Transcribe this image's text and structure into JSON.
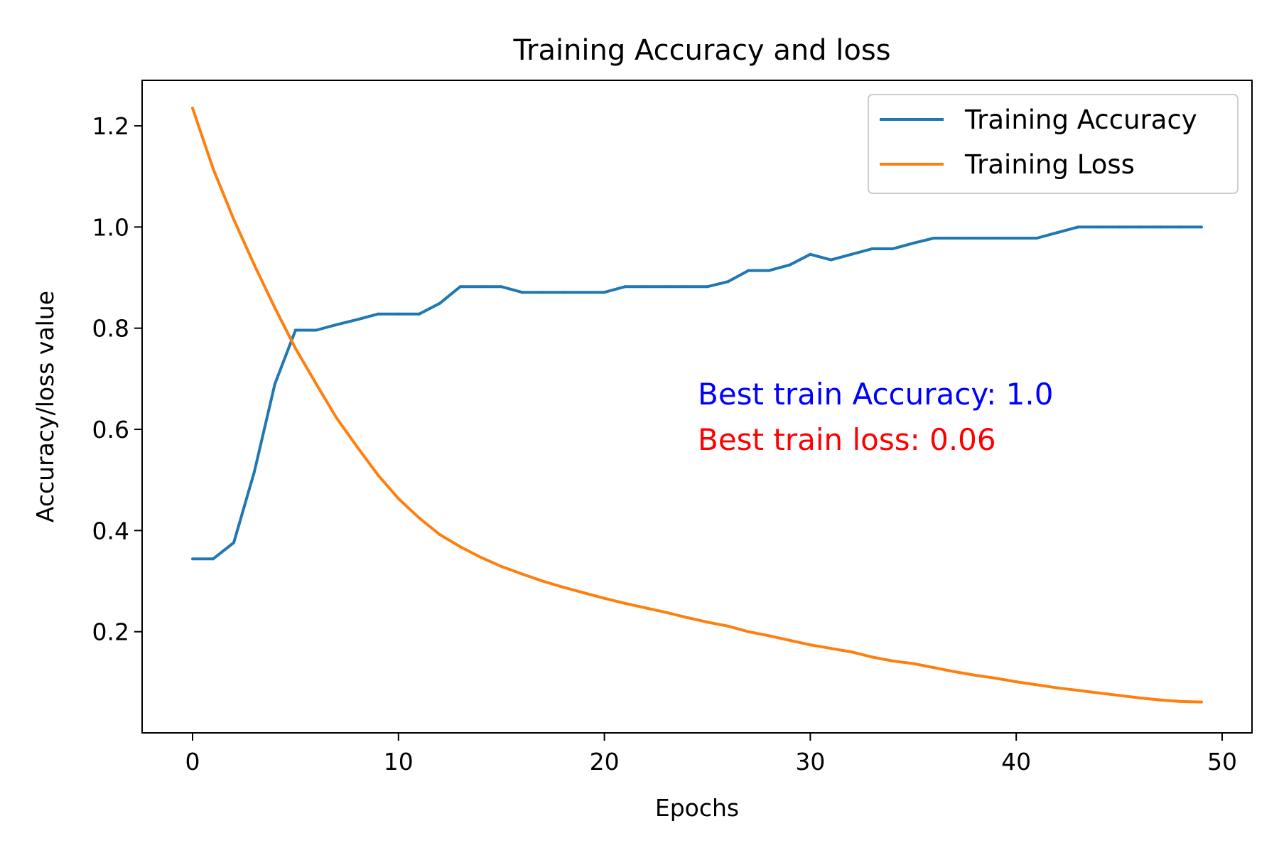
{
  "chart_data": {
    "type": "line",
    "title": "Training Accuracy and loss",
    "xlabel": "Epochs",
    "ylabel": "Accuracy/loss value",
    "xlim": [
      -2.45,
      51.45
    ],
    "ylim": [
      0.0,
      1.29
    ],
    "xticks": [
      0,
      10,
      20,
      30,
      40,
      50
    ],
    "yticks": [
      0.2,
      0.4,
      0.6,
      0.8,
      1.0,
      1.2
    ],
    "grid": false,
    "legend_position": "top-right",
    "x": [
      0,
      1,
      2,
      3,
      4,
      5,
      6,
      7,
      8,
      9,
      10,
      11,
      12,
      13,
      14,
      15,
      16,
      17,
      18,
      19,
      20,
      21,
      22,
      23,
      24,
      25,
      26,
      27,
      28,
      29,
      30,
      31,
      32,
      33,
      34,
      35,
      36,
      37,
      38,
      39,
      40,
      41,
      42,
      43,
      44,
      45,
      46,
      47,
      48,
      49
    ],
    "series": [
      {
        "name": "Training Accuracy",
        "color": "#1f77b4",
        "values": [
          0.344,
          0.344,
          0.376,
          0.516,
          0.69,
          0.796,
          0.796,
          0.807,
          0.817,
          0.828,
          0.828,
          0.828,
          0.849,
          0.882,
          0.882,
          0.882,
          0.871,
          0.871,
          0.871,
          0.871,
          0.871,
          0.882,
          0.882,
          0.882,
          0.882,
          0.882,
          0.892,
          0.914,
          0.914,
          0.925,
          0.946,
          0.935,
          0.946,
          0.957,
          0.957,
          0.968,
          0.978,
          0.978,
          0.978,
          0.978,
          0.978,
          0.978,
          0.989,
          1.0,
          1.0,
          1.0,
          1.0,
          1.0,
          1.0,
          1.0
        ]
      },
      {
        "name": "Training Loss",
        "color": "#ff7f0e",
        "values": [
          1.235,
          1.115,
          1.015,
          0.925,
          0.84,
          0.76,
          0.69,
          0.622,
          0.565,
          0.51,
          0.463,
          0.425,
          0.392,
          0.368,
          0.347,
          0.329,
          0.314,
          0.3,
          0.288,
          0.277,
          0.266,
          0.256,
          0.247,
          0.238,
          0.228,
          0.219,
          0.211,
          0.2,
          0.192,
          0.183,
          0.174,
          0.167,
          0.16,
          0.15,
          0.142,
          0.137,
          0.129,
          0.121,
          0.114,
          0.108,
          0.101,
          0.095,
          0.089,
          0.084,
          0.079,
          0.074,
          0.069,
          0.065,
          0.062,
          0.061
        ]
      }
    ],
    "annotations": [
      {
        "text": "Best train Accuracy: 1.0",
        "color": "#0000ff"
      },
      {
        "text": "Best train loss: 0.06",
        "color": "#ff0000"
      }
    ]
  }
}
